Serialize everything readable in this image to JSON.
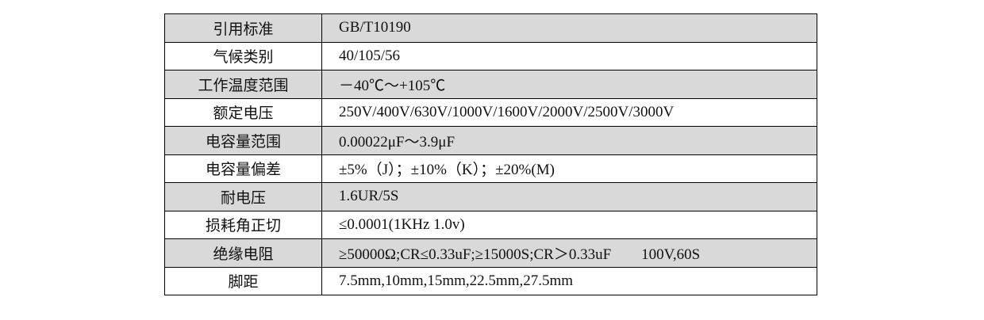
{
  "table": {
    "rows": [
      [
        "引用标准",
        "GB/T10190"
      ],
      [
        "气候类别",
        "40/105/56"
      ],
      [
        "工作温度范围",
        "－40℃～+105℃"
      ],
      [
        "额定电压",
        "250V/400V/630V/1000V/1600V/2000V/2500V/3000V"
      ],
      [
        "电容量范围",
        "0.00022μF～3.9μF"
      ],
      [
        "电容量偏差",
        "±5%（J）；±10%（K）；±20%(M)"
      ],
      [
        "耐电压",
        "1.6UR/5S"
      ],
      [
        "损耗角正切",
        "≤0.0001(1KHz 1.0v)"
      ],
      [
        "绝缘电阻",
        "≥50000Ω;CR≤0.33uF;≥15000S;CR＞0.33uF        100V,60S"
      ],
      [
        "脚距",
        "7.5mm,10mm,15mm,22.5mm,27.5mm"
      ]
    ]
  }
}
